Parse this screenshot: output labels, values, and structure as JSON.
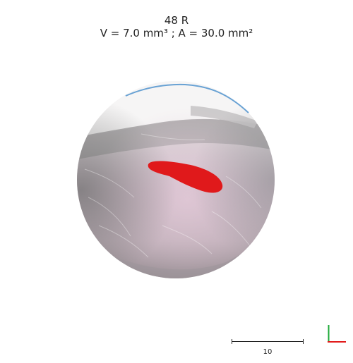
{
  "header": {
    "title": "48 R",
    "measurements": "V = 7.0 mm³ ; A = 30.0 mm²"
  },
  "scale_bar": {
    "label": "10"
  },
  "colors": {
    "lesion": "#e0191b",
    "skin_base": "#cdbcc6",
    "fur_top": "#f4f2f2",
    "axis_x": "#e21b1b",
    "axis_y": "#1faa3a"
  },
  "icons": {
    "axis_indicator": "xy-axis-icon"
  }
}
